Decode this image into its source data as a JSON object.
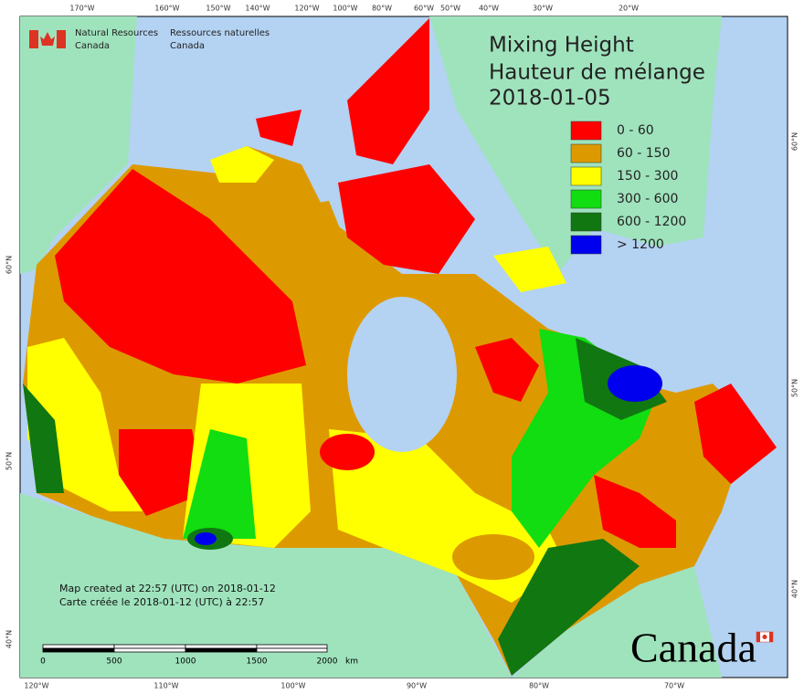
{
  "header": {
    "org_en": [
      "Natural Resources",
      "Canada"
    ],
    "org_fr": [
      "Ressources naturelles",
      "Canada"
    ]
  },
  "title": [
    "Mixing Height",
    "Hauteur de mélange",
    "2018-01-05"
  ],
  "legend": [
    {
      "label": "0 - 60",
      "color": "#ff0000"
    },
    {
      "label": "60 - 150",
      "color": "#dd9a00"
    },
    {
      "label": "150 - 300",
      "color": "#ffff00"
    },
    {
      "label": "300 - 600",
      "color": "#11dd11"
    },
    {
      "label": "600 - 1200",
      "color": "#117711"
    },
    {
      "label": "> 1200",
      "color": "#0000ee"
    }
  ],
  "credits": [
    "Map created at 22:57 (UTC) on 2018-01-12",
    "Carte créée le 2018-01-12 (UTC) à 22:57"
  ],
  "scale_bar": {
    "labels": [
      "0",
      "500",
      "1000",
      "1500",
      "2000"
    ],
    "unit": "km"
  },
  "graticule": {
    "top": [
      "170°W",
      "160°W",
      "150°W",
      "140°W",
      "120°W",
      "100°W",
      "80°W",
      "60°W",
      "50°W",
      "40°W",
      "30°W",
      "20°W"
    ],
    "bottom": [
      "120°W",
      "110°W",
      "100°W",
      "90°W",
      "80°W",
      "70°W"
    ],
    "left": [
      "60°N",
      "50°N",
      "40°N"
    ],
    "right": [
      "60°N",
      "50°N",
      "40°N"
    ]
  },
  "wordmark": "Canada"
}
